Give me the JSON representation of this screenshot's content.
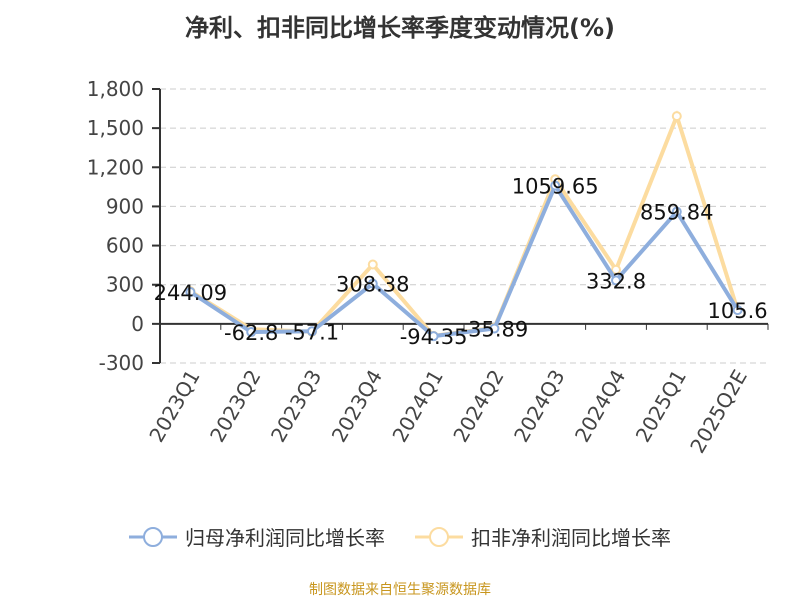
{
  "chart_data": {
    "type": "line",
    "title": "净利、扣非同比增长率季度变动情况(%)",
    "categories": [
      "2023Q1",
      "2023Q2",
      "2023Q3",
      "2023Q4",
      "2024Q1",
      "2024Q2",
      "2024Q3",
      "2024Q4",
      "2025Q1",
      "2025Q2E"
    ],
    "series": [
      {
        "name": "归母净利润同比增长率",
        "color": "#8eaedd",
        "values": [
          244.09,
          -62.8,
          -57.1,
          308.38,
          -94.35,
          -35.89,
          1059.65,
          332.8,
          859.84,
          105.6
        ],
        "labels": [
          "244.09",
          "-62.8",
          "-57.1",
          "308.38",
          "-94.35",
          "-35.89",
          "1059.65",
          "332.8",
          "859.84",
          "105.6"
        ]
      },
      {
        "name": "扣非净利润同比增长率",
        "color": "#fcdca0",
        "values": [
          250,
          -40,
          -60,
          455,
          -92,
          -30,
          1108,
          415,
          1592,
          105.6
        ]
      }
    ],
    "yticks": [
      "1,800",
      "1,500",
      "1,200",
      "900",
      "600",
      "300",
      "0",
      "-300"
    ],
    "ylim": [
      -300,
      1800
    ],
    "grid": true,
    "legend": "bottom"
  },
  "source": "制图数据来自恒生聚源数据库"
}
